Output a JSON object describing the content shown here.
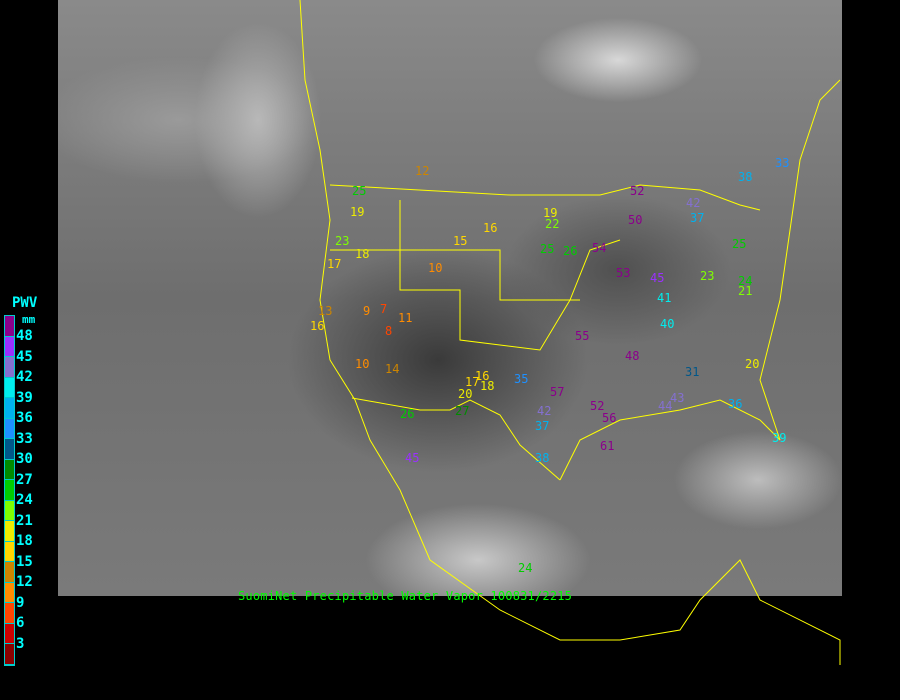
{
  "caption": "SuomiNet Precipitable Water Vapor 100831/2215",
  "legend": {
    "title": "PWV",
    "unit": "mm",
    "labels": [
      "48",
      "45",
      "42",
      "39",
      "36",
      "33",
      "30",
      "27",
      "24",
      "21",
      "18",
      "15",
      "12",
      "9",
      "6",
      "3"
    ],
    "colors": [
      "#8b008b",
      "#9b30ff",
      "#8470d0",
      "#00eeee",
      "#00b2ee",
      "#1e90ff",
      "#00578a",
      "#008b00",
      "#00cd00",
      "#7fff00",
      "#eeee00",
      "#ffd700",
      "#cd8500",
      "#ff8c00",
      "#ff4500",
      "#cd0000",
      "#8b0000"
    ]
  },
  "border_color": "#ffff00",
  "stations": [
    "12",
    "25",
    "19",
    "23",
    "18",
    "17",
    "13",
    "16",
    "10",
    "9",
    "7",
    "11",
    "14",
    "16",
    "15",
    "8",
    "10",
    "16",
    "19",
    "22",
    "25",
    "26",
    "54",
    "53",
    "52",
    "50",
    "42",
    "37",
    "38",
    "33",
    "25",
    "23",
    "21",
    "24",
    "20",
    "41",
    "40",
    "45",
    "48",
    "44",
    "36",
    "55",
    "57",
    "61",
    "37",
    "38",
    "24",
    "45",
    "27",
    "26",
    "20",
    "17",
    "18",
    "35",
    "42",
    "52",
    "56",
    "43",
    "31",
    "39"
  ]
}
